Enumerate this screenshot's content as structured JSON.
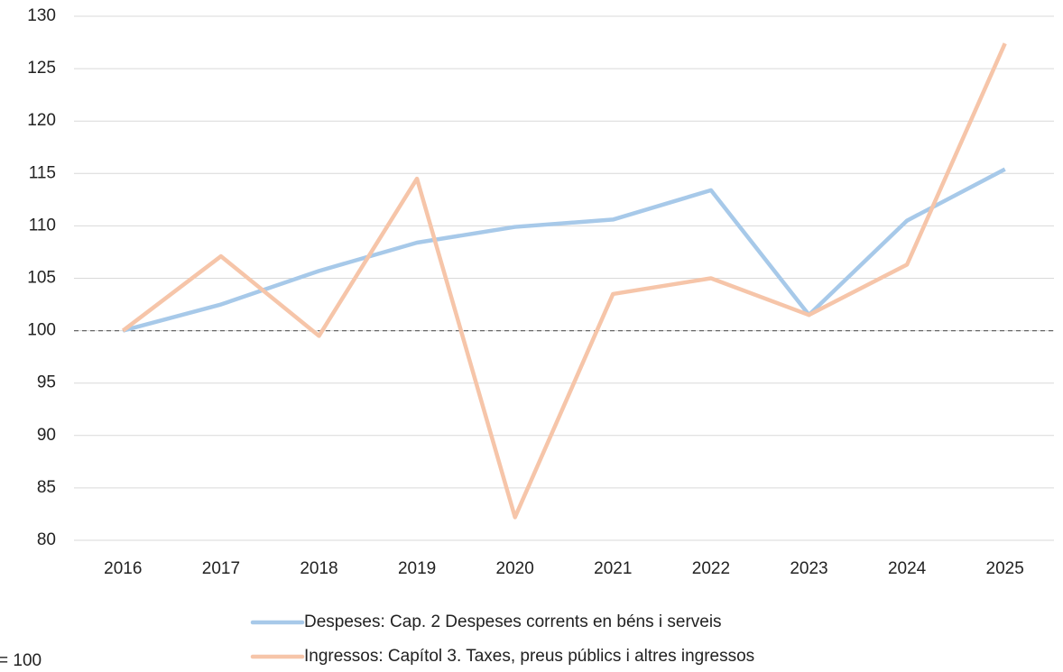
{
  "chart_data": {
    "type": "line",
    "categories": [
      "2016",
      "2017",
      "2018",
      "2019",
      "2020",
      "2021",
      "2022",
      "2023",
      "2024",
      "2025"
    ],
    "series": [
      {
        "name": "Despeses: Cap. 2 Despeses corrents en béns i serveis",
        "color": "#a7c9e9",
        "values": [
          100,
          102.5,
          105.7,
          108.4,
          109.9,
          110.6,
          113.4,
          101.5,
          110.5,
          115.4
        ]
      },
      {
        "name": "Ingressos: Capítol 3. Taxes, preus públics i altres ingressos",
        "color": "#f6c5a9",
        "values": [
          100,
          107.1,
          99.5,
          114.5,
          82.2,
          103.5,
          105.0,
          101.5,
          106.3,
          127.4
        ]
      }
    ],
    "ylim": [
      80,
      130
    ],
    "yticks": [
      80,
      85,
      90,
      95,
      100,
      105,
      110,
      115,
      120,
      125,
      130
    ],
    "grid": true,
    "reference_line": 100,
    "legend": "bottom",
    "note": "= 100"
  }
}
